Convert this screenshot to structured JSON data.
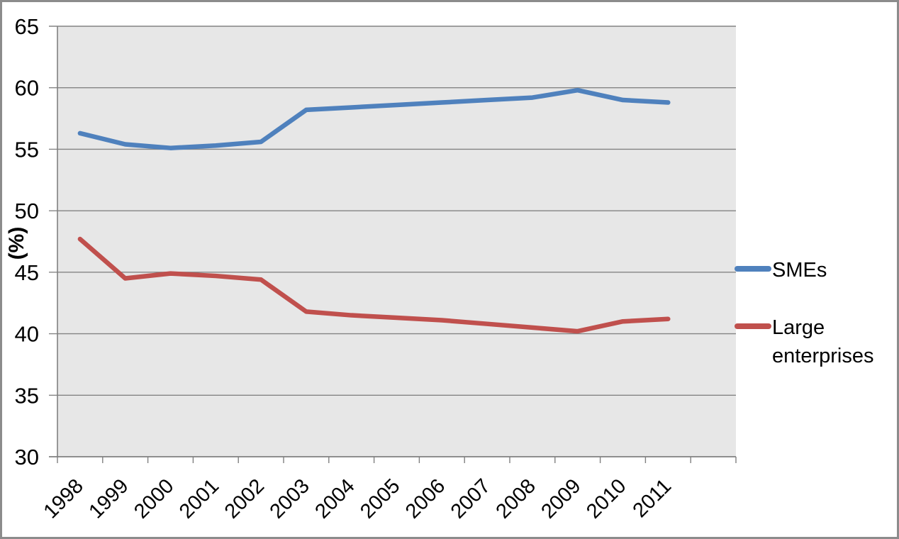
{
  "chart_data": {
    "type": "line",
    "x": [
      "1998",
      "1999",
      "2000",
      "2001",
      "2002",
      "2003",
      "2004",
      "2005",
      "2006",
      "2007",
      "2008",
      "2009",
      "2010",
      "2011"
    ],
    "series": [
      {
        "name": "SMEs",
        "color": "#4F81BD",
        "values": [
          56.3,
          55.4,
          55.1,
          55.3,
          55.6,
          58.2,
          58.4,
          58.6,
          58.8,
          59.0,
          59.2,
          59.8,
          59.0,
          58.8
        ]
      },
      {
        "name": "Large enterprises",
        "color": "#C0504D",
        "values": [
          47.7,
          44.5,
          44.9,
          44.7,
          44.4,
          41.8,
          41.5,
          41.3,
          41.1,
          40.8,
          40.5,
          40.2,
          41.0,
          41.2
        ]
      }
    ],
    "title": "",
    "xlabel": "",
    "ylabel": "(%)",
    "ylim": [
      30,
      65
    ],
    "ytick_step": 5,
    "grid": true,
    "legend_position": "right",
    "plot_bg_color": "#E7E7E7",
    "grid_color": "#848484",
    "axis_color": "#808080",
    "frame_color": "#8C8C8C",
    "line_width": 6.5
  },
  "y_axis": {
    "title": "(%)",
    "ticks": [
      "30",
      "35",
      "40",
      "45",
      "50",
      "55",
      "60",
      "65"
    ]
  },
  "x_axis": {
    "ticks": [
      "1998",
      "1999",
      "2000",
      "2001",
      "2002",
      "2003",
      "2004",
      "2005",
      "2006",
      "2007",
      "2008",
      "2009",
      "2010",
      "2011"
    ]
  },
  "legend": {
    "items": [
      {
        "lines": [
          "SMEs"
        ],
        "color": "#4F81BD"
      },
      {
        "lines": [
          "Large",
          "enterprises"
        ],
        "color": "#C0504D"
      }
    ]
  }
}
